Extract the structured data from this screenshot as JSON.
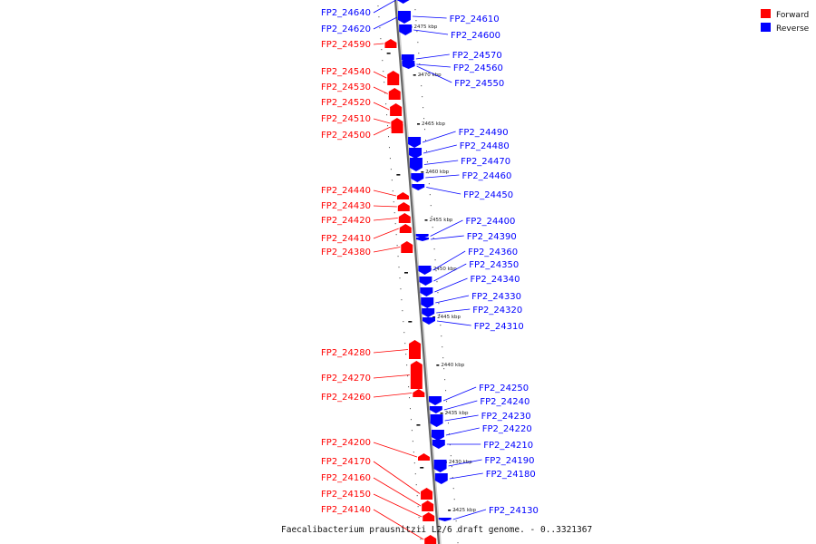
{
  "colors": {
    "forward": "#ff0000",
    "reverse": "#0000ff",
    "backbone": "#666666"
  },
  "legend": {
    "forward_label": "Forward",
    "reverse_label": "Reverse"
  },
  "caption": "Faecalibacterium prausnitzii L2/6 draft genome. - 0..3321367",
  "kbp_labels": [
    "2475 kbp",
    "2470 kbp",
    "2465 kbp",
    "2460 kbp",
    "2455 kbp",
    "2450 kbp",
    "2445 kbp",
    "2440 kbp",
    "2435 kbp",
    "2430 kbp",
    "2425 kbp"
  ],
  "forward_genes": [
    "FP2_24590",
    "FP2_24540",
    "FP2_24530",
    "FP2_24520",
    "FP2_24510",
    "FP2_24500",
    "FP2_24440",
    "FP2_24430",
    "FP2_24420",
    "FP2_24410",
    "FP2_24380",
    "FP2_24280",
    "FP2_24270",
    "FP2_24260",
    "FP2_24200",
    "FP2_24170",
    "FP2_24160",
    "FP2_24150",
    "FP2_24140"
  ],
  "reverse_genes": [
    "FP2_24640",
    "FP2_24620",
    "FP2_24610",
    "FP2_24600",
    "FP2_24570",
    "FP2_24560",
    "FP2_24550",
    "FP2_24490",
    "FP2_24480",
    "FP2_24470",
    "FP2_24460",
    "FP2_24450",
    "FP2_24400",
    "FP2_24390",
    "FP2_24360",
    "FP2_24350",
    "FP2_24340",
    "FP2_24330",
    "FP2_24320",
    "FP2_24310",
    "FP2_24250",
    "FP2_24240",
    "FP2_24230",
    "FP2_24220",
    "FP2_24210",
    "FP2_24190",
    "FP2_24180",
    "FP2_24130"
  ]
}
